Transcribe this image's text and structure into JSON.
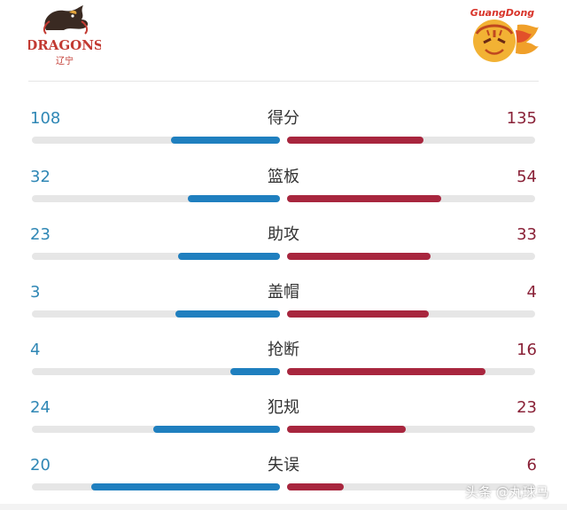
{
  "header": {
    "left_team_logo": "dragons-logo",
    "right_team_logo": "guangdong-tiger-logo",
    "left_logo_text": "DRAGONS",
    "left_logo_subtext": "辽宁",
    "right_logo_text": "GuangDong"
  },
  "colors": {
    "left_accent": "#1f7fbf",
    "left_value": "#2f87b5",
    "right_accent": "#a8263e",
    "right_value": "#8a2238",
    "track": "#e6e6e6"
  },
  "stats": [
    {
      "label": "得分",
      "left": "108",
      "right": "135",
      "left_frac": 0.44,
      "right_frac": 0.55
    },
    {
      "label": "篮板",
      "left": "32",
      "right": "54",
      "left_frac": 0.37,
      "right_frac": 0.62
    },
    {
      "label": "助攻",
      "left": "23",
      "right": "33",
      "left_frac": 0.41,
      "right_frac": 0.58
    },
    {
      "label": "盖帽",
      "left": "3",
      "right": "4",
      "left_frac": 0.42,
      "right_frac": 0.57
    },
    {
      "label": "抢断",
      "left": "4",
      "right": "16",
      "left_frac": 0.2,
      "right_frac": 0.8
    },
    {
      "label": "犯规",
      "left": "24",
      "right": "23",
      "left_frac": 0.51,
      "right_frac": 0.48
    },
    {
      "label": "失误",
      "left": "20",
      "right": "6",
      "left_frac": 0.76,
      "right_frac": 0.23
    }
  ],
  "watermark": "头条 @丸球马"
}
